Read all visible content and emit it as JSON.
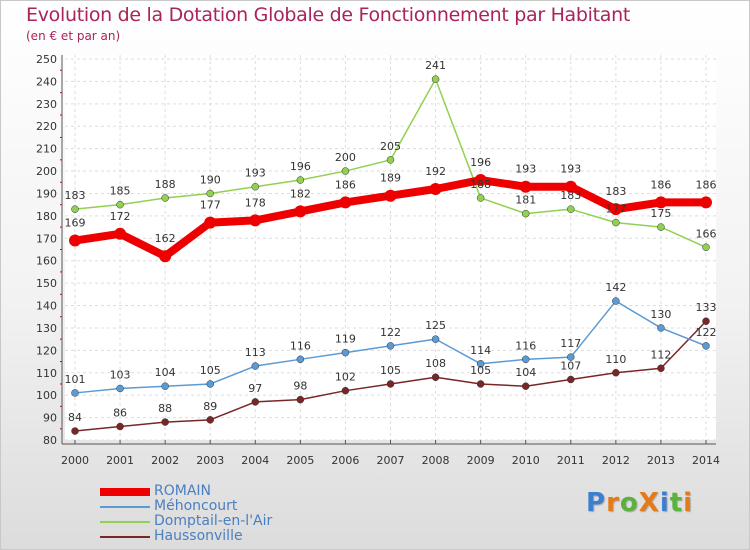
{
  "title": "Evolution de la Dotation Globale de Fonctionnement par Habitant",
  "subtitle": "(en € et par an)",
  "logo": {
    "text": "ProXiti",
    "colors": [
      "#3b7fd0",
      "#e67a16",
      "#59b33a",
      "#e67a16",
      "#3b7fd0",
      "#59b33a",
      "#e67a16"
    ]
  },
  "colors": {
    "title": "#a8245a",
    "axis": "#555555",
    "grid": "#dddddd",
    "minor_tick": "#cc0000"
  },
  "chart_data": {
    "type": "line",
    "x": [
      "2000",
      "2001",
      "2002",
      "2003",
      "2004",
      "2005",
      "2006",
      "2007",
      "2008",
      "2009",
      "2010",
      "2011",
      "2012",
      "2013",
      "2014"
    ],
    "ylim": [
      80,
      250
    ],
    "ytick_step": 10,
    "grid": true,
    "legend_position": "bottom-left",
    "series": [
      {
        "name": "ROMAIN",
        "color": "#ee0000",
        "width": 8,
        "values": [
          169,
          172,
          162,
          177,
          178,
          182,
          186,
          189,
          192,
          196,
          193,
          193,
          183,
          186,
          186
        ]
      },
      {
        "name": "Méhoncourt",
        "color": "#5b9bd5",
        "width": 1.5,
        "values": [
          101,
          103,
          104,
          105,
          113,
          116,
          119,
          122,
          125,
          114,
          116,
          117,
          142,
          130,
          122
        ]
      },
      {
        "name": "Domptail-en-l'Air",
        "color": "#92d050",
        "width": 1.5,
        "values": [
          183,
          185,
          188,
          190,
          193,
          196,
          200,
          205,
          241,
          188,
          181,
          183,
          177,
          175,
          166
        ]
      },
      {
        "name": "Haussonville",
        "color": "#7a2626",
        "width": 1.5,
        "values": [
          84,
          86,
          88,
          89,
          97,
          98,
          102,
          105,
          108,
          105,
          104,
          107,
          110,
          112,
          133
        ]
      }
    ]
  }
}
